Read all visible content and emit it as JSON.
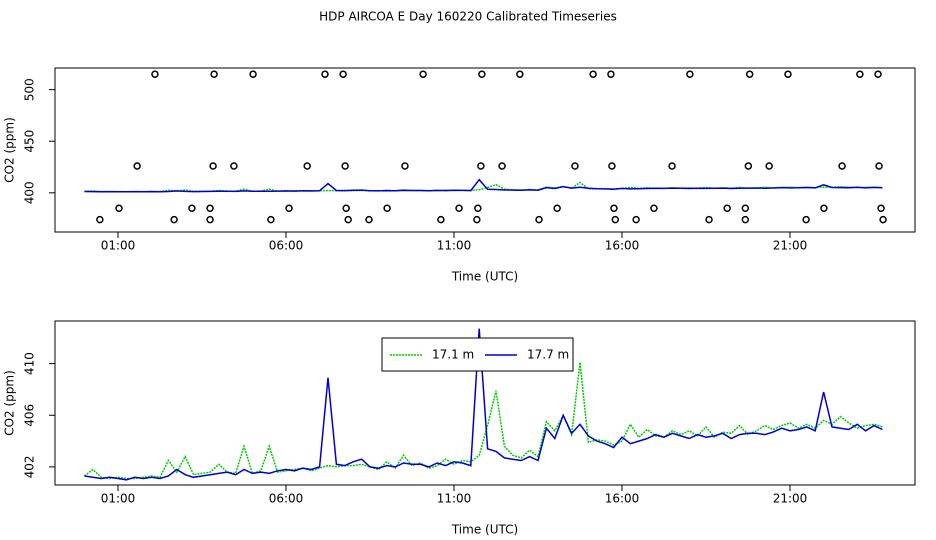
{
  "chart_data": [
    {
      "type": "scatter",
      "title": "HDP AIRCOA E  Day 160220  Calibrated Timeseries",
      "xlabel": "Time (UTC)",
      "ylabel": "CO2 (ppm)",
      "color": "#000000",
      "x": [
        0.46,
        1.03,
        1.57,
        2.1,
        2.67,
        3.2,
        3.74,
        3.74,
        3.83,
        3.86,
        4.45,
        5.02,
        5.55,
        6.09,
        6.63,
        7.16,
        7.7,
        7.76,
        7.79,
        7.85,
        8.47,
        9.01,
        9.54,
        10.08,
        10.61,
        11.15,
        11.68,
        11.71,
        11.8,
        11.83,
        12.43,
        12.96,
        13.53,
        14.07,
        14.6,
        15.14,
        15.67,
        15.7,
        15.76,
        15.8,
        16.42,
        16.95,
        17.49,
        18.02,
        18.59,
        19.13,
        19.67,
        19.67,
        19.76,
        19.8,
        20.38,
        20.94,
        21.48,
        22.01,
        22.55,
        23.08,
        23.62,
        23.65,
        23.71,
        23.77
      ],
      "values": [
        374,
        385,
        426,
        515,
        374,
        385,
        374,
        385,
        426,
        515,
        426,
        515,
        374,
        385,
        426,
        515,
        515,
        426,
        385,
        374,
        374,
        385,
        426,
        515,
        374,
        385,
        374,
        385,
        426,
        515,
        426,
        515,
        374,
        385,
        426,
        515,
        515,
        426,
        385,
        374,
        374,
        385,
        426,
        515,
        374,
        385,
        374,
        385,
        426,
        515,
        426,
        515,
        374,
        385,
        426,
        515,
        515,
        426,
        385,
        374
      ],
      "xlim": [
        -0.875,
        24.72
      ],
      "ylim": [
        362,
        521
      ],
      "yticks": [
        400,
        450,
        500
      ],
      "xticks": [
        {
          "value": 1,
          "label": "01:00"
        },
        {
          "value": 6,
          "label": "06:00"
        },
        {
          "value": 11,
          "label": "11:00"
        },
        {
          "value": 16,
          "label": "16:00"
        },
        {
          "value": 21,
          "label": "21:00"
        }
      ]
    },
    {
      "type": "line",
      "xlabel": "Time (UTC)",
      "ylabel": "CO2 (ppm)",
      "legend": "top",
      "x": [
        0,
        0.25,
        0.5,
        0.75,
        1,
        1.25,
        1.5,
        1.75,
        2,
        2.25,
        2.5,
        2.75,
        3,
        3.25,
        3.5,
        3.75,
        4,
        4.25,
        4.5,
        4.75,
        5,
        5.25,
        5.5,
        5.75,
        6,
        6.25,
        6.5,
        6.75,
        7,
        7.25,
        7.5,
        7.75,
        8,
        8.25,
        8.5,
        8.75,
        9,
        9.25,
        9.5,
        9.75,
        10,
        10.25,
        10.5,
        10.75,
        11,
        11.25,
        11.5,
        11.75,
        12,
        12.25,
        12.5,
        12.75,
        13,
        13.25,
        13.5,
        13.75,
        14,
        14.25,
        14.5,
        14.75,
        15,
        15.25,
        15.5,
        15.75,
        16,
        16.25,
        16.5,
        16.75,
        17,
        17.25,
        17.5,
        17.75,
        18,
        18.25,
        18.5,
        18.75,
        19,
        19.25,
        19.5,
        19.75,
        20,
        20.25,
        20.5,
        20.75,
        21,
        21.25,
        21.5,
        21.75,
        22,
        22.25,
        22.5,
        22.75,
        23,
        23.25,
        23.5,
        23.75
      ],
      "series": [
        {
          "name": "17.1 m",
          "color": "#00cc00",
          "dash": true,
          "values": [
            401.3,
            401.8,
            401.2,
            401.1,
            401.2,
            401.1,
            401.1,
            401.2,
            401.3,
            401.2,
            402.5,
            401.6,
            402.8,
            401.4,
            401.5,
            401.6,
            402.2,
            401.6,
            401.5,
            403.6,
            401.5,
            401.7,
            403.6,
            401.6,
            401.7,
            401.8,
            401.9,
            401.7,
            401.9,
            402.1,
            402.0,
            402.1,
            402.1,
            402.2,
            402.0,
            401.8,
            402.4,
            401.9,
            402.9,
            402.1,
            402.3,
            401.9,
            402.1,
            402.6,
            402.2,
            402.5,
            402.4,
            402.9,
            405.2,
            407.9,
            403.6,
            402.9,
            402.7,
            403.3,
            402.8,
            405.5,
            404.8,
            406.0,
            404.5,
            410.1,
            403.9,
            404.1,
            404.0,
            403.7,
            404.0,
            405.3,
            404.3,
            404.9,
            404.4,
            404.3,
            404.8,
            404.5,
            404.8,
            404.4,
            405.1,
            404.3,
            404.7,
            404.6,
            405.2,
            404.5,
            404.8,
            405.2,
            404.9,
            405.2,
            405.4,
            405.0,
            405.3,
            405.0,
            405.6,
            405.3,
            405.9,
            405.4,
            405.0,
            405.2,
            405.3,
            405.1
          ]
        },
        {
          "name": "17.7 m",
          "color": "#0000cc",
          "values": [
            401.3,
            401.2,
            401.1,
            401.2,
            401.1,
            401.0,
            401.2,
            401.1,
            401.2,
            401.1,
            401.3,
            401.8,
            401.4,
            401.2,
            401.3,
            401.4,
            401.5,
            401.6,
            401.4,
            401.8,
            401.5,
            401.6,
            401.5,
            401.7,
            401.8,
            401.7,
            401.9,
            401.8,
            402.0,
            408.9,
            402.2,
            402.1,
            402.4,
            402.6,
            402.0,
            401.9,
            402.1,
            402.0,
            402.3,
            402.2,
            402.2,
            402.0,
            402.3,
            402.1,
            402.4,
            402.3,
            402.1,
            412.7,
            403.4,
            403.2,
            402.7,
            402.6,
            402.5,
            402.8,
            402.5,
            405.0,
            404.2,
            406.0,
            404.6,
            405.3,
            404.4,
            404.0,
            403.8,
            403.5,
            404.3,
            403.8,
            404.0,
            404.2,
            404.5,
            404.3,
            404.6,
            404.4,
            404.2,
            404.5,
            404.3,
            404.4,
            404.6,
            404.2,
            404.5,
            404.6,
            404.6,
            404.5,
            404.7,
            405.0,
            404.8,
            404.9,
            405.1,
            404.8,
            407.8,
            405.1,
            405.0,
            404.9,
            405.3,
            404.8,
            405.2,
            404.9
          ]
        }
      ],
      "xlim": [
        -0.875,
        24.72
      ],
      "ylim": [
        400.6,
        413.3
      ],
      "yticks": [
        402,
        406,
        410
      ],
      "xticks": [
        {
          "value": 1,
          "label": "01:00"
        },
        {
          "value": 6,
          "label": "06:00"
        },
        {
          "value": 11,
          "label": "11:00"
        },
        {
          "value": 16,
          "label": "16:00"
        },
        {
          "value": 21,
          "label": "21:00"
        }
      ]
    }
  ]
}
